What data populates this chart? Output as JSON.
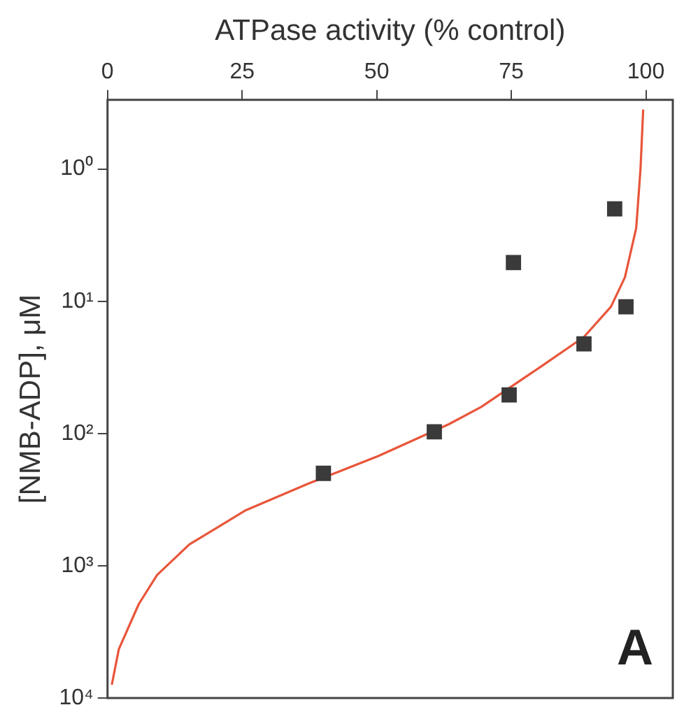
{
  "chart_data": {
    "type": "scatter",
    "xlabel": "ATPase activity (% control)",
    "ylabel": "[NMB-ADP], μM",
    "log": "y",
    "xlim": [
      0,
      105
    ],
    "xticks": [
      0,
      25,
      50,
      75,
      100
    ],
    "ylim": [
      10000,
      0.316
    ],
    "yticks": [
      {
        "value": 1,
        "label": "10⁰"
      },
      {
        "value": 10,
        "label": "10¹"
      },
      {
        "value": 100,
        "label": "10²"
      },
      {
        "value": 1000,
        "label": "10³"
      },
      {
        "value": 10000,
        "label": "10⁴"
      }
    ],
    "grid": false,
    "legend": false,
    "marker": "square",
    "annotations": [
      "A"
    ],
    "series": [
      {
        "color": "#3a3a3a",
        "x": [
          94.2,
          75.4,
          96.3,
          88.5,
          74.6,
          60.7,
          40.1
        ],
        "values": [
          2.0,
          5.1,
          11,
          21,
          51,
          97,
          200
        ]
      },
      {
        "type": "line",
        "color": "#e8553a",
        "marker": "none",
        "line_style": "solid",
        "x": [
          99.5,
          99.0,
          98.2,
          96.1,
          93.5,
          88.5,
          80.6,
          69.4,
          63.4,
          50.3,
          37.2,
          25.7,
          15.2,
          9.2,
          5.8,
          2.1,
          0.8
        ],
        "values": [
          0.355,
          1,
          2.8,
          6.6,
          11,
          18.6,
          31,
          63,
          85,
          148,
          240,
          380,
          690,
          1175,
          1950,
          4270,
          7940
        ]
      }
    ]
  }
}
